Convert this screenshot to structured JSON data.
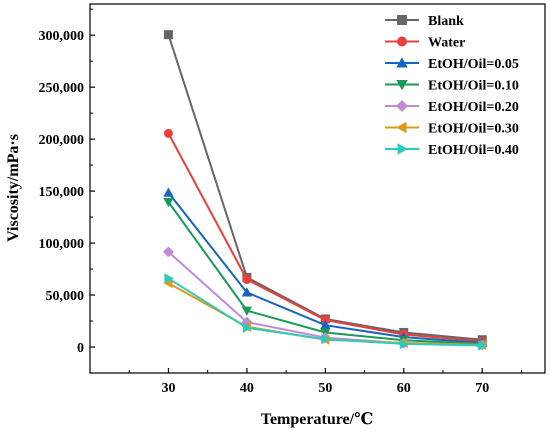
{
  "chart_data": {
    "type": "line",
    "title": "",
    "xlabel": "Temperature/℃",
    "ylabel": "Viscosity/mPa·s",
    "x": [
      30,
      40,
      50,
      60,
      70
    ],
    "xlim": [
      20,
      78
    ],
    "ylim": [
      -25000,
      330000
    ],
    "xticks": [
      30,
      40,
      50,
      60,
      70
    ],
    "yticks": [
      0,
      50000,
      100000,
      150000,
      200000,
      250000,
      300000
    ],
    "ytick_labels": [
      "0",
      "50,000",
      "100,000",
      "150,000",
      "200,000",
      "250,000",
      "300,000"
    ],
    "grid": false,
    "legend_position": "top-right",
    "series": [
      {
        "name": "Blank",
        "color": "#666666",
        "marker": "square",
        "values": [
          300500,
          67000,
          27000,
          14000,
          7000
        ]
      },
      {
        "name": "Water",
        "color": "#e8413c",
        "marker": "circle",
        "values": [
          205500,
          65000,
          26000,
          12000,
          5500
        ]
      },
      {
        "name": "EtOH/Oil=0.05",
        "color": "#1565c0",
        "marker": "triangle-up",
        "values": [
          148500,
          52500,
          21000,
          9500,
          4000
        ]
      },
      {
        "name": "EtOH/Oil=0.10",
        "color": "#1a9a57",
        "marker": "triangle-down",
        "values": [
          139500,
          35000,
          14000,
          6500,
          3000
        ]
      },
      {
        "name": "EtOH/Oil=0.20",
        "color": "#c08ad9",
        "marker": "diamond",
        "values": [
          91500,
          24000,
          9000,
          3500,
          2000
        ]
      },
      {
        "name": "EtOH/Oil=0.30",
        "color": "#e09a1a",
        "marker": "triangle-left",
        "values": [
          61500,
          19500,
          7000,
          4000,
          2000
        ]
      },
      {
        "name": "EtOH/Oil=0.40",
        "color": "#2ec9c0",
        "marker": "triangle-right",
        "values": [
          66000,
          18500,
          7500,
          3000,
          1500
        ]
      }
    ]
  }
}
